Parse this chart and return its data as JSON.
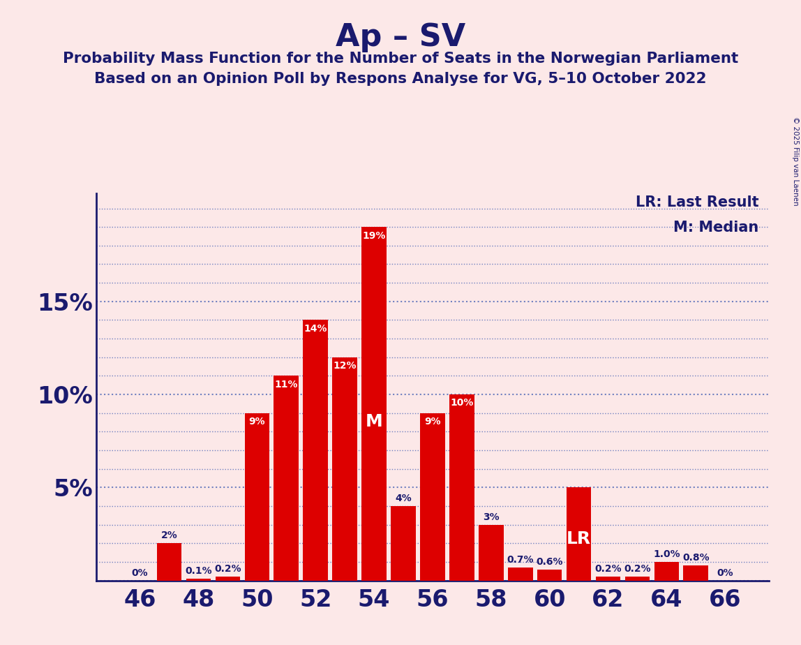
{
  "title": "Ap – SV",
  "subtitle1": "Probability Mass Function for the Number of Seats in the Norwegian Parliament",
  "subtitle2": "Based on an Opinion Poll by Respons Analyse for VG, 5–10 October 2022",
  "copyright": "© 2025 Filip van Laenen",
  "seats": [
    46,
    47,
    48,
    49,
    50,
    51,
    52,
    53,
    54,
    55,
    56,
    57,
    58,
    59,
    60,
    61,
    62,
    63,
    64,
    65,
    66
  ],
  "probabilities": [
    0.0,
    0.02,
    0.001,
    0.002,
    0.09,
    0.11,
    0.14,
    0.12,
    0.19,
    0.04,
    0.09,
    0.1,
    0.03,
    0.007,
    0.006,
    0.05,
    0.002,
    0.002,
    0.01,
    0.008,
    0.0
  ],
  "labels": [
    "0%",
    "2%",
    "0.1%",
    "0.2%",
    "9%",
    "11%",
    "14%",
    "12%",
    "19%",
    "4%",
    "9%",
    "10%",
    "3%",
    "0.7%",
    "0.6%",
    "",
    "0.2%",
    "0.2%",
    "1.0%",
    "0.8%",
    "0%"
  ],
  "bar_color": "#dd0000",
  "background_color": "#fce8e8",
  "title_color": "#1a1a6e",
  "bar_label_color_outside": "#1a1a6e",
  "bar_label_color_inside": "#ffffff",
  "axis_color": "#1a1a6e",
  "grid_color": "#7080c0",
  "median_seat": 54,
  "lr_seat": 61,
  "lr_label": "LR",
  "lr_legend": "LR: Last Result",
  "m_legend": "M: Median",
  "xlim": [
    44.5,
    67.5
  ],
  "ylim": [
    0,
    0.208
  ],
  "ytick_major": [
    0.0,
    0.05,
    0.1,
    0.15
  ],
  "ytick_major_labels": [
    "",
    "5%",
    "10%",
    "15%"
  ],
  "ytick_minor_count": 5,
  "label_inside_threshold": 0.045
}
